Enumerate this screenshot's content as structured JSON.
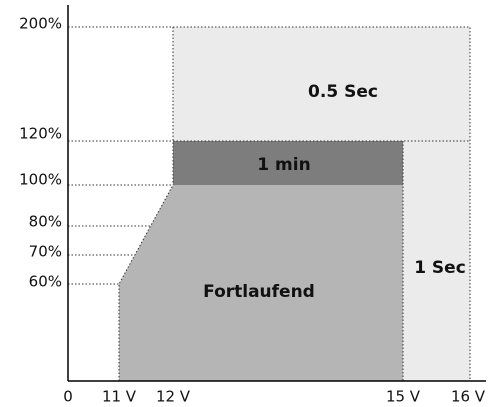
{
  "y_axis_labels": [
    "200%",
    "120%",
    "100%",
    "80%",
    "70%",
    "60%"
  ],
  "x_axis_labels": [
    "0",
    "11 V",
    "12 V",
    "15 V",
    "16 V"
  ],
  "regions": [
    "0.5 Sec",
    "1 min",
    "Fortlaufend",
    "1 Sec"
  ]
}
